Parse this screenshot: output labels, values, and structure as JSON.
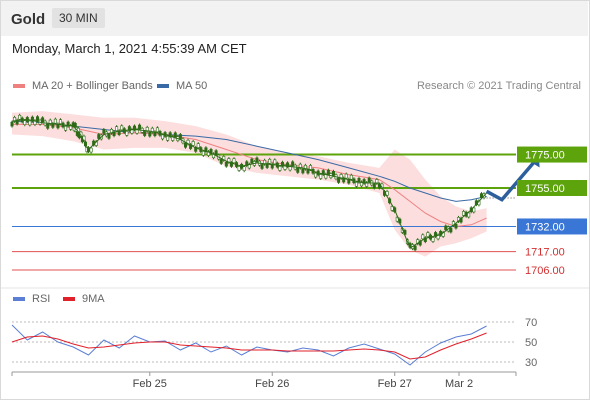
{
  "header": {
    "instrument": "Gold",
    "timeframe": "30 MIN"
  },
  "timestamp": "Monday, March 1, 2021 4:55:39 AM CET",
  "main_legend": [
    {
      "label": "MA 20 + Bollinger Bands",
      "color": "#f08080"
    },
    {
      "label": "MA 50",
      "color": "#3a6aa5"
    }
  ],
  "credit": "Research © 2021 Trading Central",
  "rsi_legend": [
    {
      "label": "RSI",
      "color": "#5b7fd4"
    },
    {
      "label": "9MA",
      "color": "#e0202a"
    }
  ],
  "colors": {
    "resistance": "#5da30b",
    "pivot": "#3a76d6",
    "support": "#e05050",
    "candle": "#2e6b17",
    "band_fill": "#fbd3d3",
    "arrow": "#2d5f9c"
  },
  "chart_data": {
    "type": "line",
    "title": "Gold",
    "price_scale": [
      1700,
      1810
    ],
    "levels": [
      {
        "value": 1775.0,
        "label": "1775.00",
        "kind": "resistance"
      },
      {
        "value": 1755.0,
        "label": "1755.00",
        "kind": "resistance"
      },
      {
        "value": 1732.0,
        "label": "1732.00",
        "kind": "pivot"
      },
      {
        "value": 1717.0,
        "label": "1717.00",
        "kind": "support"
      },
      {
        "value": 1706.0,
        "label": "1706.00",
        "kind": "support"
      }
    ],
    "x_ticks": [
      "Feb 25",
      "Feb 26",
      "Feb 27",
      "Mar 2"
    ],
    "x_tick_pos": [
      4.5,
      8.5,
      12.5,
      14.6
    ],
    "x_range": [
      0,
      16.2
    ],
    "price": {
      "x": [
        0,
        0.5,
        1,
        1.5,
        2,
        2.2,
        2.5,
        3,
        3.5,
        4,
        4.5,
        5,
        5.5,
        6,
        6.5,
        7,
        7.5,
        8,
        8.5,
        9,
        9.5,
        10,
        10.5,
        11,
        11.5,
        12,
        12.5,
        13,
        13.5,
        14,
        14.5,
        15,
        15.5
      ],
      "y": [
        1795,
        1796,
        1794,
        1793,
        1792,
        1788,
        1778,
        1787,
        1789,
        1790,
        1789,
        1787,
        1784,
        1779,
        1776,
        1771,
        1768,
        1770,
        1769,
        1768,
        1767,
        1764,
        1762,
        1760,
        1758,
        1758,
        1742,
        1719,
        1725,
        1727,
        1734,
        1742,
        1752
      ]
    },
    "ma20": {
      "x": [
        0,
        1,
        2,
        3,
        4,
        5,
        6,
        7,
        8,
        9,
        10,
        11,
        12,
        12.5,
        13,
        13.5,
        14,
        14.5,
        15,
        15.5
      ],
      "y": [
        1793,
        1793,
        1791,
        1787,
        1788,
        1787,
        1784,
        1778,
        1772,
        1769,
        1767,
        1763,
        1760,
        1754,
        1747,
        1740,
        1735,
        1732,
        1733,
        1737
      ]
    },
    "ma50": {
      "x": [
        0,
        1,
        2,
        3,
        4,
        5,
        6,
        7,
        8,
        9,
        10,
        11,
        12,
        12.5,
        13,
        13.5,
        14,
        14.5,
        15,
        15.5
      ],
      "y": [
        1795,
        1794,
        1792,
        1790,
        1788,
        1787,
        1786,
        1784,
        1780,
        1776,
        1772,
        1767,
        1762,
        1759,
        1755,
        1752,
        1749,
        1747,
        1748,
        1750
      ]
    },
    "band_upper": [
      1800,
      1801,
      1799,
      1797,
      1797,
      1795,
      1792,
      1787,
      1780,
      1776,
      1774,
      1770,
      1767,
      1778,
      1772,
      1760,
      1750,
      1744,
      1741,
      1743
    ],
    "band_lower": [
      1787,
      1786,
      1783,
      1778,
      1779,
      1779,
      1776,
      1768,
      1764,
      1762,
      1760,
      1757,
      1752,
      1730,
      1718,
      1714,
      1720,
      1722,
      1725,
      1729
    ],
    "forecast": {
      "x": [
        15.5,
        16.0,
        17.2
      ],
      "y": [
        1753,
        1748,
        1775
      ]
    },
    "rsi_scale": [
      20,
      80
    ],
    "rsi_ticks": [
      70,
      50,
      30
    ],
    "rsi": {
      "x": [
        0,
        0.5,
        1,
        1.5,
        2,
        2.5,
        3,
        3.5,
        4,
        4.5,
        5,
        5.5,
        6,
        6.5,
        7,
        7.5,
        8,
        8.5,
        9,
        9.5,
        10,
        10.5,
        11,
        11.5,
        12,
        12.5,
        13,
        13.5,
        14,
        14.5,
        15,
        15.5
      ],
      "y": [
        67,
        52,
        60,
        50,
        45,
        37,
        52,
        44,
        56,
        50,
        51,
        42,
        49,
        40,
        46,
        37,
        45,
        42,
        40,
        44,
        42,
        36,
        44,
        48,
        43,
        38,
        27,
        40,
        49,
        55,
        58,
        66
      ]
    },
    "rsi_ma": {
      "x": [
        0,
        0.5,
        1,
        1.5,
        2,
        2.5,
        3,
        3.5,
        4,
        4.5,
        5,
        5.5,
        6,
        6.5,
        7,
        7.5,
        8,
        8.5,
        9,
        9.5,
        10,
        10.5,
        11,
        11.5,
        12,
        12.5,
        13,
        13.5,
        14,
        14.5,
        15,
        15.5
      ],
      "y": [
        50,
        55,
        56,
        53,
        48,
        44,
        45,
        47,
        49,
        50,
        50,
        47,
        46,
        45,
        44,
        42,
        42,
        42,
        41,
        41,
        41,
        41,
        42,
        43,
        42,
        40,
        33,
        35,
        42,
        48,
        53,
        59
      ]
    }
  }
}
